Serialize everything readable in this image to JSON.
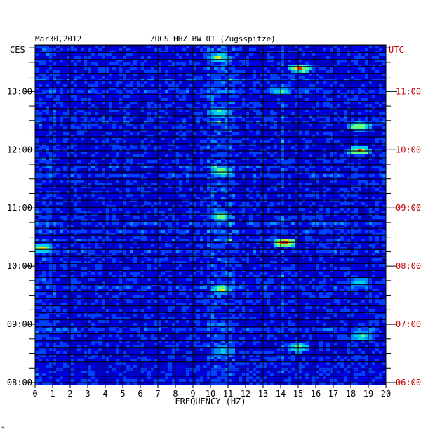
{
  "chart_data": {
    "type": "heatmap",
    "title": "ZUGS HHZ BW 01 (Zugsspitze)",
    "date": "Mar30,2012",
    "left_axis_title": "CES",
    "right_axis_title": "UTC",
    "xlabel": "FREQUENCY (HZ)",
    "xlim": [
      0,
      20
    ],
    "x_ticks": [
      "0",
      "1",
      "2",
      "3",
      "4",
      "5",
      "6",
      "7",
      "8",
      "9",
      "10",
      "11",
      "12",
      "13",
      "14",
      "15",
      "16",
      "17",
      "18",
      "19",
      "20"
    ],
    "left_time_labels": [
      "13:00",
      "12:00",
      "11:00",
      "10:00",
      "09:00",
      "08:00"
    ],
    "right_time_labels": [
      "11:00",
      "10:00",
      "09:00",
      "08:00",
      "07:00",
      "06:00"
    ],
    "ylim_local_hours": [
      8,
      13.8
    ],
    "hot_spots": [
      {
        "freq_hz": 10.5,
        "local_hour": 13.58,
        "level": 0.8
      },
      {
        "freq_hz": 14.0,
        "local_hour": 13.0,
        "level": 0.7
      },
      {
        "freq_hz": 15.1,
        "local_hour": 13.4,
        "level": 0.9
      },
      {
        "freq_hz": 10.5,
        "local_hour": 12.65,
        "level": 0.75
      },
      {
        "freq_hz": 18.5,
        "local_hour": 12.4,
        "level": 0.85
      },
      {
        "freq_hz": 18.5,
        "local_hour": 11.98,
        "level": 0.9
      },
      {
        "freq_hz": 10.6,
        "local_hour": 11.62,
        "level": 0.85
      },
      {
        "freq_hz": 10.6,
        "local_hour": 10.85,
        "level": 0.8
      },
      {
        "freq_hz": 14.2,
        "local_hour": 10.4,
        "level": 0.95
      },
      {
        "freq_hz": 0.4,
        "local_hour": 10.3,
        "level": 0.85
      },
      {
        "freq_hz": 10.6,
        "local_hour": 9.6,
        "level": 0.85
      },
      {
        "freq_hz": 18.5,
        "local_hour": 9.73,
        "level": 0.7
      },
      {
        "freq_hz": 15.0,
        "local_hour": 8.6,
        "level": 0.8
      },
      {
        "freq_hz": 18.6,
        "local_hour": 8.8,
        "level": 0.75
      },
      {
        "freq_hz": 10.7,
        "local_hour": 8.55,
        "level": 0.7
      }
    ],
    "colors": {
      "background": "#0000c8",
      "grid": "#000000",
      "left_text": "#000000",
      "right_text": "#c00000"
    }
  },
  "footer_mark": "*"
}
